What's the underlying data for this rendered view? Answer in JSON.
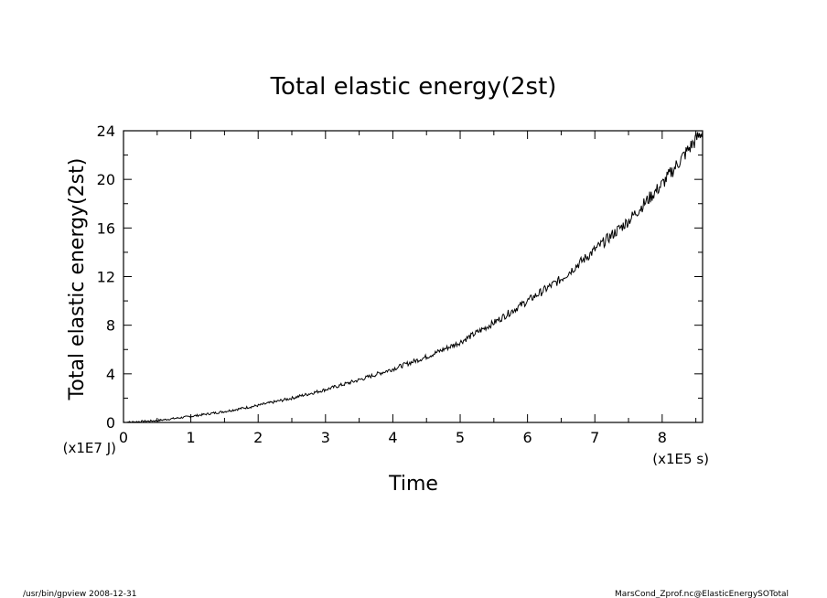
{
  "chart_data": {
    "type": "line",
    "title": "Total elastic energy(2st)",
    "xlabel": "Time",
    "ylabel": "Total elastic energy(2st)",
    "x_unit": "(x1E5 s)",
    "y_unit": "(x1E7 J)",
    "xlim": [
      0,
      8.6
    ],
    "ylim": [
      0,
      24
    ],
    "x_ticks": [
      "0",
      "1",
      "2",
      "3",
      "4",
      "5",
      "6",
      "7",
      "8"
    ],
    "y_ticks": [
      "0",
      "4",
      "8",
      "12",
      "16",
      "20",
      "24"
    ],
    "grid": false,
    "legend": "none",
    "series": [
      {
        "color": "#000000",
        "x": [
          0,
          0.5,
          1,
          1.5,
          2,
          2.5,
          3,
          3.5,
          4,
          4.5,
          5,
          5.5,
          6,
          6.5,
          7,
          7.5,
          8,
          8.3,
          8.6
        ],
        "y": [
          0,
          0.15,
          0.5,
          0.9,
          1.4,
          2.0,
          2.7,
          3.5,
          4.4,
          5.4,
          6.6,
          8.2,
          10.0,
          11.8,
          14.2,
          16.6,
          19.6,
          21.8,
          24.0
        ]
      }
    ]
  },
  "footer": {
    "left": "/usr/bin/gpview   2008-12-31",
    "right": "MarsCond_Zprof.nc@ElasticEnergySOTotal"
  }
}
